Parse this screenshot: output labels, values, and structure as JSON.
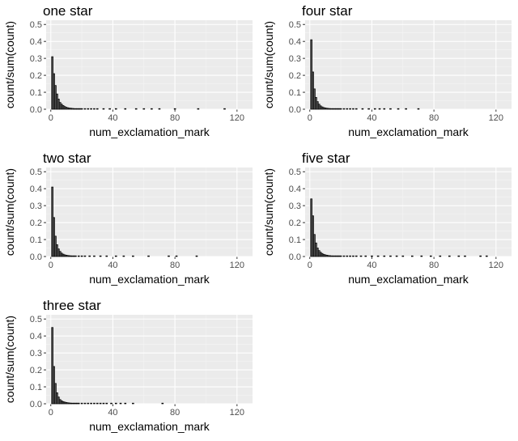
{
  "chart_data": [
    {
      "type": "bar",
      "title": "one star",
      "xlabel": "num_exclamation_mark",
      "ylabel": "count/sum(count)",
      "xlim": [
        -3,
        130
      ],
      "ylim": [
        0,
        0.525
      ],
      "x_ticks": [
        "0",
        "40",
        "80",
        "120"
      ],
      "y_ticks": [
        "0.0",
        "0.1",
        "0.2",
        "0.3",
        "0.4",
        "0.5"
      ],
      "grid": true,
      "x": [
        1,
        2,
        3,
        4,
        5,
        6,
        7,
        8,
        9,
        10,
        11,
        12,
        13,
        14,
        15,
        16,
        17,
        18,
        19,
        20,
        22,
        24,
        26,
        28,
        30,
        34,
        38,
        42,
        48,
        55,
        60,
        65,
        70,
        80,
        95,
        112
      ],
      "values": [
        0.31,
        0.21,
        0.14,
        0.09,
        0.06,
        0.04,
        0.03,
        0.022,
        0.016,
        0.012,
        0.009,
        0.007,
        0.006,
        0.005,
        0.004,
        0.003,
        0.003,
        0.002,
        0.002,
        0.002,
        0.0015,
        0.0012,
        0.001,
        0.001,
        0.001,
        0.001,
        0.001,
        0.001,
        0.001,
        0.001,
        0.001,
        0.001,
        0.001,
        0.001,
        0.001,
        0.001
      ]
    },
    {
      "type": "bar",
      "title": "four star",
      "xlabel": "num_exclamation_mark",
      "ylabel": "count/sum(count)",
      "xlim": [
        -3,
        130
      ],
      "ylim": [
        0,
        0.525
      ],
      "x_ticks": [
        "0",
        "40",
        "80",
        "120"
      ],
      "y_ticks": [
        "0.0",
        "0.1",
        "0.2",
        "0.3",
        "0.4",
        "0.5"
      ],
      "grid": true,
      "x": [
        1,
        2,
        3,
        4,
        5,
        6,
        7,
        8,
        9,
        10,
        11,
        12,
        13,
        14,
        15,
        16,
        17,
        18,
        19,
        20,
        22,
        24,
        26,
        28,
        30,
        34,
        38,
        42,
        45,
        48,
        52,
        57,
        62,
        70
      ],
      "values": [
        0.41,
        0.22,
        0.12,
        0.07,
        0.045,
        0.03,
        0.02,
        0.014,
        0.01,
        0.008,
        0.006,
        0.005,
        0.004,
        0.003,
        0.003,
        0.002,
        0.002,
        0.002,
        0.0015,
        0.0015,
        0.001,
        0.001,
        0.001,
        0.001,
        0.001,
        0.001,
        0.001,
        0.001,
        0.001,
        0.001,
        0.001,
        0.001,
        0.001,
        0.001
      ]
    },
    {
      "type": "bar",
      "title": "two star",
      "xlabel": "num_exclamation_mark",
      "ylabel": "count/sum(count)",
      "xlim": [
        -3,
        130
      ],
      "ylim": [
        0,
        0.525
      ],
      "x_ticks": [
        "0",
        "40",
        "80",
        "120"
      ],
      "y_ticks": [
        "0.0",
        "0.1",
        "0.2",
        "0.3",
        "0.4",
        "0.5"
      ],
      "grid": true,
      "x": [
        1,
        2,
        3,
        4,
        5,
        6,
        7,
        8,
        9,
        10,
        11,
        12,
        13,
        14,
        15,
        16,
        18,
        20,
        22,
        25,
        28,
        32,
        36,
        42,
        47,
        53,
        63,
        76,
        81,
        94
      ],
      "values": [
        0.41,
        0.23,
        0.12,
        0.07,
        0.045,
        0.03,
        0.02,
        0.014,
        0.01,
        0.008,
        0.006,
        0.005,
        0.004,
        0.003,
        0.003,
        0.002,
        0.002,
        0.0015,
        0.001,
        0.001,
        0.001,
        0.001,
        0.001,
        0.001,
        0.001,
        0.001,
        0.001,
        0.001,
        0.001,
        0.001
      ]
    },
    {
      "type": "bar",
      "title": "five star",
      "xlabel": "num_exclamation_mark",
      "ylabel": "count/sum(count)",
      "xlim": [
        -3,
        130
      ],
      "ylim": [
        0,
        0.525
      ],
      "x_ticks": [
        "0",
        "40",
        "80",
        "120"
      ],
      "y_ticks": [
        "0.0",
        "0.1",
        "0.2",
        "0.3",
        "0.4",
        "0.5"
      ],
      "grid": true,
      "x": [
        1,
        2,
        3,
        4,
        5,
        6,
        7,
        8,
        9,
        10,
        11,
        12,
        13,
        14,
        15,
        16,
        17,
        18,
        19,
        20,
        22,
        24,
        26,
        28,
        30,
        33,
        36,
        40,
        44,
        48,
        52,
        56,
        60,
        66,
        72,
        78,
        84,
        90,
        96,
        100,
        110,
        114
      ],
      "values": [
        0.34,
        0.24,
        0.13,
        0.08,
        0.05,
        0.035,
        0.025,
        0.018,
        0.013,
        0.01,
        0.008,
        0.006,
        0.005,
        0.004,
        0.003,
        0.003,
        0.002,
        0.002,
        0.002,
        0.0015,
        0.0015,
        0.001,
        0.001,
        0.001,
        0.001,
        0.001,
        0.001,
        0.001,
        0.001,
        0.001,
        0.001,
        0.001,
        0.001,
        0.001,
        0.001,
        0.001,
        0.001,
        0.001,
        0.001,
        0.001,
        0.001,
        0.001
      ]
    },
    {
      "type": "bar",
      "title": "three star",
      "xlabel": "num_exclamation_mark",
      "ylabel": "count/sum(count)",
      "xlim": [
        -3,
        130
      ],
      "ylim": [
        0,
        0.525
      ],
      "x_ticks": [
        "0",
        "40",
        "80",
        "120"
      ],
      "y_ticks": [
        "0.0",
        "0.1",
        "0.2",
        "0.3",
        "0.4",
        "0.5"
      ],
      "grid": true,
      "x": [
        1,
        2,
        3,
        4,
        5,
        6,
        7,
        8,
        9,
        10,
        11,
        12,
        13,
        14,
        15,
        16,
        17,
        18,
        20,
        22,
        24,
        26,
        28,
        30,
        32,
        34,
        36,
        39,
        42,
        45,
        48,
        53,
        72
      ],
      "values": [
        0.45,
        0.22,
        0.12,
        0.065,
        0.04,
        0.025,
        0.018,
        0.013,
        0.01,
        0.008,
        0.006,
        0.005,
        0.004,
        0.003,
        0.003,
        0.002,
        0.002,
        0.002,
        0.0015,
        0.001,
        0.001,
        0.001,
        0.001,
        0.001,
        0.001,
        0.001,
        0.001,
        0.001,
        0.001,
        0.001,
        0.001,
        0.001,
        0.001
      ]
    }
  ]
}
